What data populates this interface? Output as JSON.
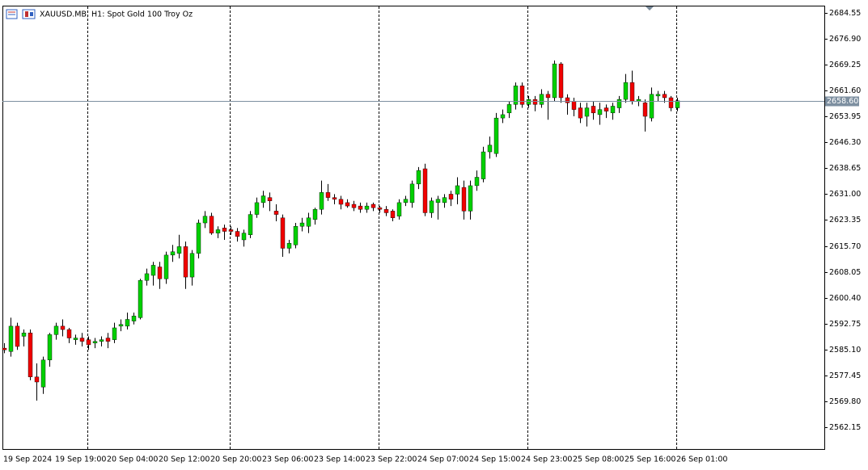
{
  "chart_data": {
    "type": "candlestick",
    "title": "XAUUSD.MB, H1:  Spot Gold 100 Troy Oz",
    "categories": [
      "19 Sep 2024",
      null,
      null,
      null,
      null,
      null,
      null,
      null,
      "19 Sep 19:00",
      null,
      null,
      null,
      null,
      null,
      null,
      null,
      "20 Sep 04:00",
      null,
      null,
      null,
      null,
      null,
      null,
      null,
      "20 Sep 12:00",
      null,
      null,
      null,
      null,
      null,
      null,
      null,
      "20 Sep 20:00",
      null,
      null,
      null,
      null,
      null,
      null,
      null,
      "23 Sep 06:00",
      null,
      null,
      null,
      null,
      null,
      null,
      null,
      "23 Sep 14:00",
      null,
      null,
      null,
      null,
      null,
      null,
      null,
      "23 Sep 22:00",
      null,
      null,
      null,
      null,
      null,
      null,
      null,
      "24 Sep 07:00",
      null,
      null,
      null,
      null,
      null,
      null,
      null,
      "24 Sep 15:00",
      null,
      null,
      null,
      null,
      null,
      null,
      null,
      "24 Sep 23:00",
      null,
      null,
      null,
      null,
      null,
      null,
      null,
      "25 Sep 08:00",
      null,
      null,
      null,
      null,
      null,
      null,
      null,
      "25 Sep 16:00",
      null,
      null,
      null,
      null,
      null,
      null,
      null,
      "26 Sep 01:00"
    ],
    "open": [
      2585.5,
      2584.5,
      2592,
      2589,
      2590,
      2577,
      2574,
      2582,
      2589.5,
      2592,
      2591,
      2588,
      2588.5,
      2588,
      2587,
      2587.5,
      2588.5,
      2588,
      2592,
      2592,
      2593.5,
      2594.5,
      2605.5,
      2607,
      2609.5,
      2606,
      2613,
      2613.5,
      2615.5,
      2606.5,
      2613.5,
      2622.5,
      2624.5,
      2619.5,
      2621,
      2620.5,
      2620,
      2617.5,
      2619,
      2625,
      2628.5,
      2630,
      2626,
      2624,
      2615,
      2616,
      2621.5,
      2621.5,
      2623.5,
      2626.5,
      2631.5,
      2630,
      2629.5,
      2628.5,
      2628,
      2627.5,
      2626.5,
      2628,
      2627,
      2626.5,
      2626,
      2624.5,
      2628.5,
      2628.5,
      2634,
      2638.5,
      2625.5,
      2628.5,
      2628.5,
      2631,
      2631,
      2633,
      2626,
      2633.5,
      2635.5,
      2643.5,
      2643,
      2653.5,
      2655,
      2657.5,
      2663,
      2657.5,
      2659,
      2657.5,
      2660.5,
      2659.5,
      2669.5,
      2659.5,
      2658.5,
      2656.5,
      2654,
      2657,
      2654.5,
      2656.5,
      2655,
      2656.5,
      2659,
      2664,
      2658.5,
      2658,
      2653.5,
      2660,
      2660.5,
      2659.5,
      2656.5
    ],
    "high": [
      2587,
      2594.5,
      2593,
      2591,
      2591,
      2581,
      2583,
      2590,
      2593,
      2594,
      2591.5,
      2589.5,
      2590,
      2589,
      2588.5,
      2589,
      2590,
      2593,
      2594,
      2596,
      2596,
      2606,
      2609,
      2611,
      2611,
      2614,
      2616,
      2619,
      2617,
      2614.5,
      2623.5,
      2626,
      2625.5,
      2621.5,
      2622,
      2621.5,
      2621,
      2620.5,
      2626,
      2630,
      2632,
      2631.5,
      2628,
      2625,
      2617.5,
      2622.5,
      2624,
      2625.5,
      2627,
      2635,
      2634,
      2631,
      2630.5,
      2629.5,
      2629,
      2628.5,
      2628.5,
      2628.5,
      2627.5,
      2627.5,
      2626.5,
      2629.5,
      2630.5,
      2635,
      2639,
      2640,
      2630,
      2630.5,
      2631,
      2632,
      2636,
      2635,
      2635,
      2638,
      2645,
      2648,
      2655,
      2656,
      2658.5,
      2664,
      2664,
      2660,
      2660,
      2662,
      2661.5,
      2670.5,
      2670,
      2660.5,
      2659.5,
      2658,
      2658,
      2658.5,
      2658,
      2657.5,
      2658,
      2660,
      2666.5,
      2667.5,
      2660,
      2659,
      2662.5,
      2661.5,
      2661.5,
      2660,
      2659.5
    ],
    "low": [
      2584,
      2583,
      2585,
      2586,
      2576,
      2570,
      2572,
      2580,
      2588,
      2589,
      2587,
      2586.5,
      2586,
      2585,
      2585.5,
      2586,
      2585.5,
      2587,
      2590.5,
      2591,
      2592.5,
      2594,
      2604,
      2604,
      2603,
      2604.5,
      2611,
      2612,
      2603,
      2604,
      2612,
      2621,
      2619,
      2618,
      2617.5,
      2619,
      2617,
      2615.5,
      2618,
      2624,
      2627,
      2626,
      2623,
      2612.5,
      2613.5,
      2615,
      2620,
      2619.5,
      2622,
      2625,
      2629,
      2628,
      2626.5,
      2627,
      2626,
      2625.5,
      2625.5,
      2626,
      2625.5,
      2624.5,
      2623,
      2623.5,
      2627.5,
      2627,
      2632.5,
      2624.5,
      2624,
      2623.5,
      2627,
      2627.5,
      2628,
      2623.5,
      2623.5,
      2632,
      2634.5,
      2641.5,
      2642,
      2652,
      2653.5,
      2656,
      2656.5,
      2656.5,
      2655.5,
      2656.5,
      2653,
      2658.5,
      2658,
      2654.5,
      2654,
      2652,
      2651,
      2653,
      2651.5,
      2653.5,
      2653,
      2655,
      2658,
      2657.5,
      2657,
      2649.5,
      2652.5,
      2658.5,
      2658,
      2655.5,
      2655.5
    ],
    "close": [
      2585,
      2592,
      2586,
      2590,
      2577,
      2575.5,
      2582,
      2589.5,
      2592,
      2591,
      2588.5,
      2588.5,
      2587.5,
      2586.5,
      2587.5,
      2588,
      2587.5,
      2591.5,
      2592.5,
      2594,
      2595,
      2605.5,
      2607.5,
      2610,
      2606,
      2613,
      2614,
      2615.5,
      2606.5,
      2613.5,
      2622.5,
      2624.5,
      2619.5,
      2620.5,
      2620,
      2620,
      2618.5,
      2619.5,
      2625,
      2628.5,
      2630.5,
      2629,
      2625,
      2615,
      2616.5,
      2621.5,
      2622.5,
      2624,
      2626.5,
      2631.5,
      2630,
      2629.5,
      2628,
      2627.5,
      2627,
      2626.5,
      2627.5,
      2627,
      2626.5,
      2625.5,
      2624,
      2628.5,
      2629.5,
      2634,
      2638,
      2625.5,
      2629,
      2629.5,
      2630,
      2629.5,
      2633.5,
      2626,
      2633.5,
      2636,
      2643.5,
      2645.5,
      2653.5,
      2654.5,
      2657.5,
      2663,
      2657.5,
      2659,
      2657.5,
      2660.5,
      2659.5,
      2669.5,
      2659.5,
      2658,
      2656,
      2653.5,
      2656.5,
      2655,
      2656,
      2655.5,
      2657,
      2659,
      2664,
      2658.5,
      2659,
      2654,
      2660.5,
      2660.5,
      2659.5,
      2656.5,
      2658.6
    ],
    "up_color": "#00d000",
    "down_color": "#f00000",
    "wick_color": "#000000",
    "ylim": [
      2555.7,
      2686.46
    ],
    "yticks": [
      2684.55,
      {
        "value": 2676.9,
        "label": "2676.90"
      },
      2669.25,
      {
        "value": 2661.6,
        "label": "2661.60"
      },
      2653.95,
      {
        "value": 2646.3,
        "label": "2646.30"
      },
      2638.65,
      {
        "value": 2631,
        "label": "2631.00"
      },
      2623.35,
      {
        "value": 2615.7,
        "label": "2615.70"
      },
      2608.05,
      {
        "value": 2600.4,
        "label": "2600.40"
      },
      2592.75,
      {
        "value": 2585.1,
        "label": "2585.10"
      },
      2577.45,
      {
        "value": 2569.8,
        "label": "2569.80"
      },
      2562.15
    ],
    "last_price": {
      "value": 2658.6,
      "label": "2658.60"
    }
  }
}
